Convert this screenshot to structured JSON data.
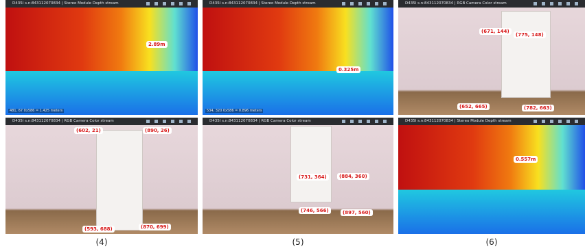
{
  "panels": [
    {
      "header": "D435I s.n:843112070834 | Stereo Module Depth stream",
      "labels": [
        "2.89m"
      ],
      "footer": "481, 67 0x586 = 1.425 meters"
    },
    {
      "header": "D435I s.n:843112070834 | Stereo Module Depth stream",
      "labels": [
        "0.325m"
      ],
      "footer": "534, 320 0x586 = 0.896 meters"
    },
    {
      "header": "D435I s.n:843112070834 | RGB Camera Color stream",
      "labels": [
        "(671, 144)",
        "(775, 148)",
        "(652, 665)",
        "(782, 663)"
      ]
    },
    {
      "header": "D435I s.n:843112070834 | RGB Camera Color stream",
      "labels": [
        "(602, 21)",
        "(890, 26)",
        "(593, 688)",
        "(870, 699)"
      ]
    },
    {
      "header": "D435I s.n:843112070834 | RGB Camera Color stream",
      "labels": [
        "(731, 364)",
        "(884, 360)",
        "(746, 566)",
        "(897, 560)"
      ]
    },
    {
      "header": "D435I s.n:843112070834 | Stereo Module Depth stream",
      "labels": [
        "0.557m"
      ]
    }
  ],
  "captions": [
    "(4)",
    "(5)",
    "(6)"
  ]
}
